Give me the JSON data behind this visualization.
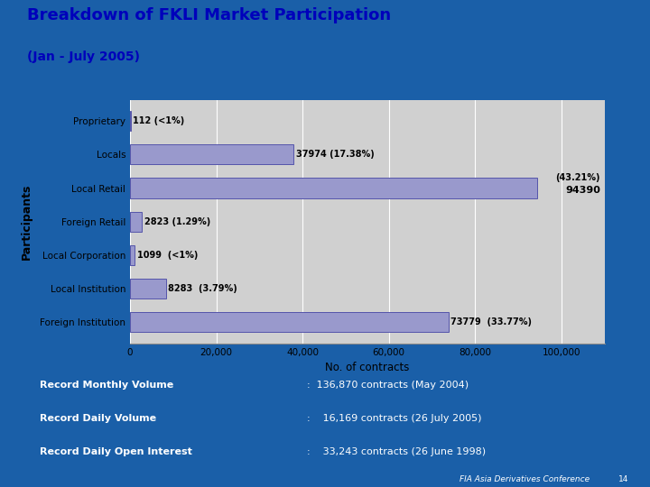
{
  "title_line1": "Breakdown of FKLI Market Participation",
  "title_line2": "(Jan - July 2005)",
  "categories": [
    "Foreign Institution",
    "Local Institution",
    "Local Corporation",
    "Foreign Retail",
    "Local Retail",
    "Locals",
    "Proprietary"
  ],
  "values": [
    73779,
    8283,
    1099,
    2823,
    94390,
    37974,
    112
  ],
  "labels": [
    "73779  (33.77%)",
    "8283  (3.79%)",
    "1099  (<1%)",
    "2823 (1.29%)",
    "",
    "37974 (17.38%)",
    "112 (<1%)"
  ],
  "extra_label_value": "94390",
  "extra_label_pct": "(43.21%)",
  "bar_color": "#9999cc",
  "bar_edge_color": "#5555aa",
  "chart_bg": "#d0d0d0",
  "chart_panel_bg": "#ffffff",
  "outer_bg": "#1a5fa8",
  "yellow_strip": "#cc8800",
  "xlabel": "No. of contracts",
  "ylabel": "Participants",
  "xlim": [
    0,
    110000
  ],
  "xticks": [
    0,
    20000,
    40000,
    60000,
    80000,
    100000
  ],
  "xtick_labels": [
    "0",
    "20,000",
    "40,000",
    "60,000",
    "80,000",
    "100,000"
  ],
  "footer_items": [
    [
      "Record Monthly Volume",
      ":  136,870 contracts (May 2004)"
    ],
    [
      "Record Daily Volume",
      ":    16,169 contracts (26 July 2005)"
    ],
    [
      "Record Daily Open Interest",
      ":    33,243 contracts (26 June 1998)"
    ]
  ],
  "footer_note": "FIA Asia Derivatives Conference",
  "footer_page": "14"
}
